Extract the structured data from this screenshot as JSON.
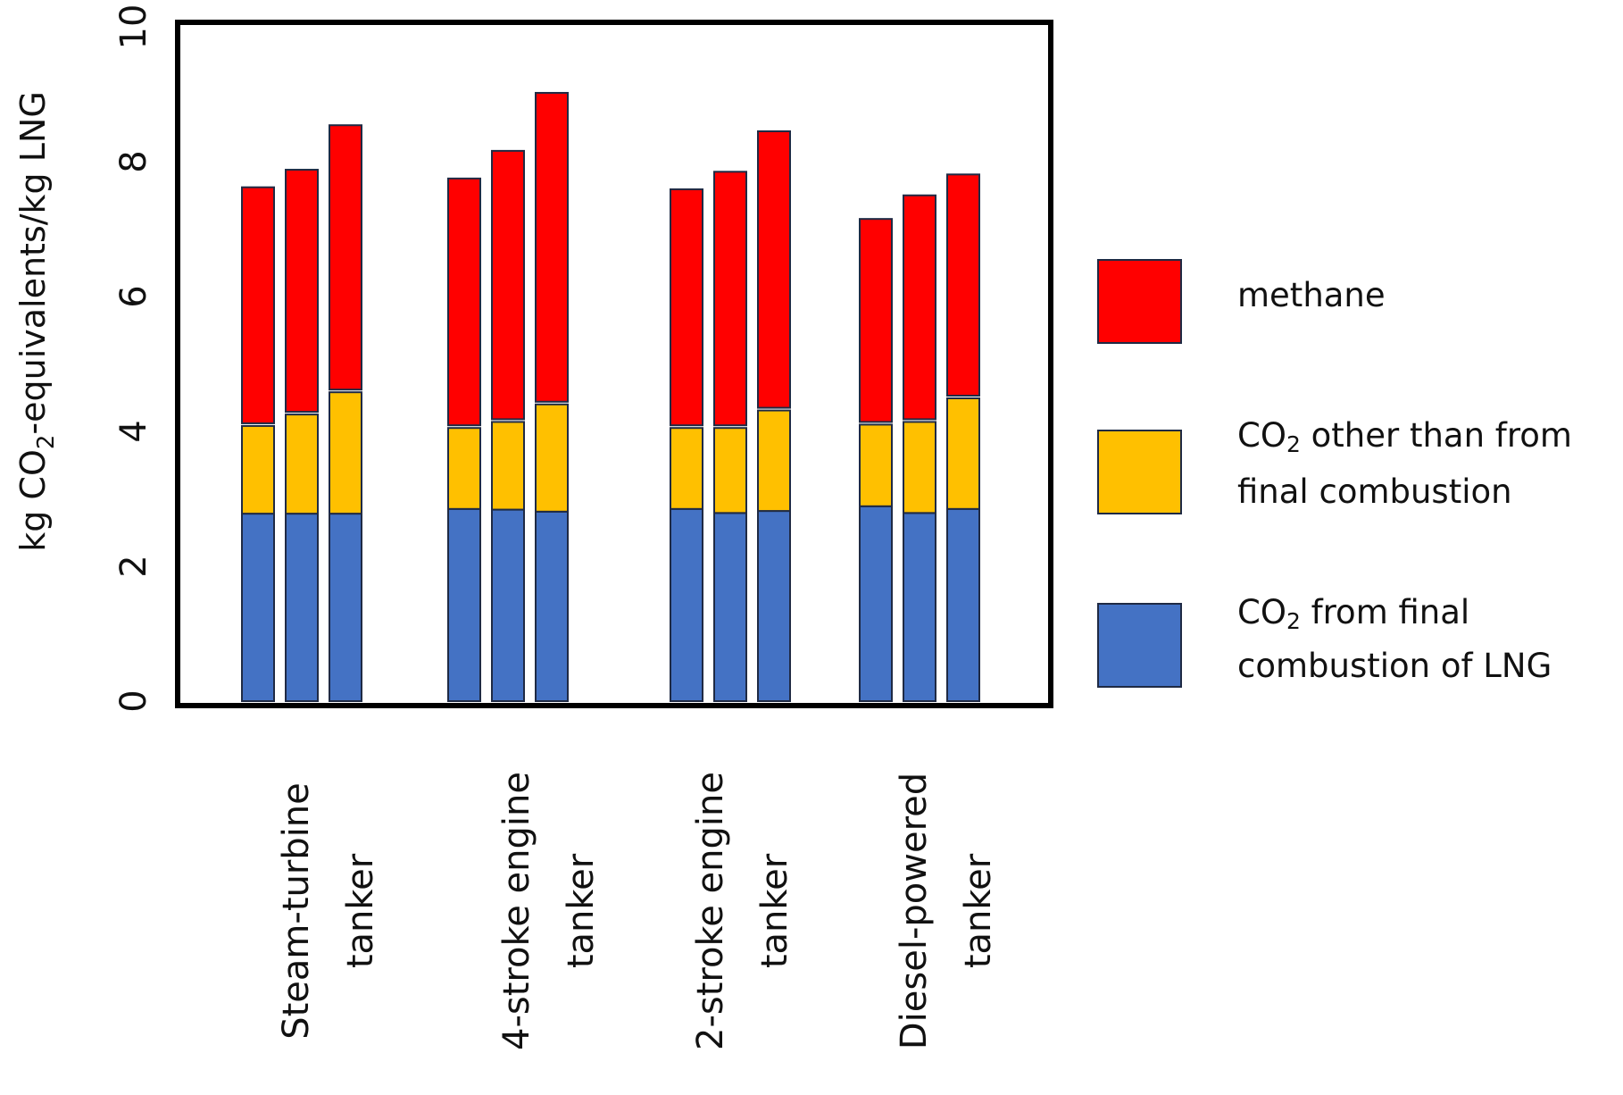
{
  "chart_data": {
    "type": "bar",
    "stacked": true,
    "title": "",
    "xlabel": "",
    "ylabel": "kg CO2-equivalents/kg LNG",
    "ylabel_parts": {
      "pre": "kg CO",
      "sub": "2",
      "post": "-equivalents/kg LNG"
    },
    "ylim": [
      0,
      10
    ],
    "yticks": [
      0,
      2,
      4,
      6,
      8,
      10
    ],
    "grid": false,
    "legend_position": "right",
    "categories": [
      {
        "line1": "Steam-turbine",
        "line2": "tanker"
      },
      {
        "line1": "4-stroke engine",
        "line2": "tanker"
      },
      {
        "line1": "2-stroke engine",
        "line2": "tanker"
      },
      {
        "line1": "Diesel-powered",
        "line2": "tanker"
      }
    ],
    "bars_per_category": 3,
    "series": [
      {
        "name": "CO2 from final combustion of LNG",
        "color": "#4472C4",
        "values": [
          [
            2.78,
            2.78,
            2.78
          ],
          [
            2.85,
            2.84,
            2.81
          ],
          [
            2.85,
            2.79,
            2.82
          ],
          [
            2.89,
            2.79,
            2.85
          ]
        ]
      },
      {
        "name": "CO2 other than from final combustion",
        "color": "#FFC000",
        "values": [
          [
            1.34,
            1.51,
            1.84
          ],
          [
            1.24,
            1.34,
            1.63
          ],
          [
            1.24,
            1.3,
            1.53
          ],
          [
            1.25,
            1.39,
            1.68
          ]
        ]
      },
      {
        "name": "methane",
        "color": "#FF0000",
        "values": [
          [
            3.54,
            3.63,
            3.96
          ],
          [
            3.7,
            4.02,
            4.62
          ],
          [
            3.54,
            3.8,
            4.14
          ],
          [
            3.05,
            3.36,
            3.32
          ]
        ]
      }
    ],
    "legend": [
      {
        "key": "methane",
        "color": "#FF0000",
        "lines": [
          {
            "pre": "methane",
            "sub": "",
            "post": ""
          }
        ]
      },
      {
        "key": "co2_other",
        "color": "#FFC000",
        "lines": [
          {
            "pre": "CO",
            "sub": "2",
            "post": " other than from"
          },
          {
            "pre": " final combustion",
            "sub": "",
            "post": ""
          }
        ]
      },
      {
        "key": "co2_final",
        "color": "#4472C4",
        "lines": [
          {
            "pre": "CO",
            "sub": "2",
            "post": " from final"
          },
          {
            "pre": "combustion of LNG",
            "sub": "",
            "post": ""
          }
        ]
      }
    ]
  }
}
